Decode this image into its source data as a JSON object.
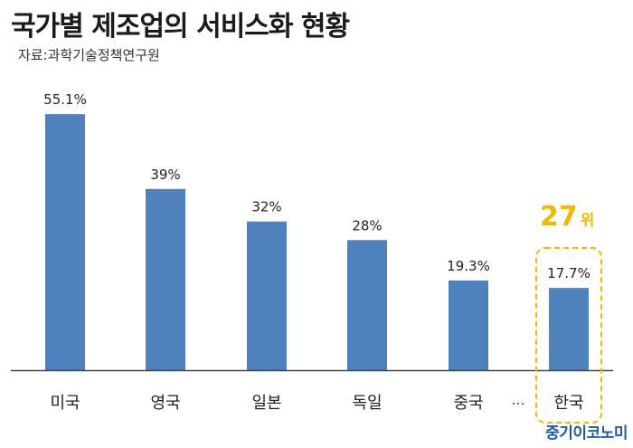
{
  "title": "국가별 제조업의 서비스화 현황",
  "source": "자료:과학기술정책연구원",
  "rank": {
    "number": "27",
    "suffix": "위"
  },
  "ellipsis": "…",
  "brand": "중기이코노미",
  "colors": {
    "bar": "#4f81bd",
    "highlight": "#f2b705",
    "axis": "#444444",
    "brand": "#1f58a8"
  },
  "chart_data": {
    "type": "bar",
    "categories": [
      "미국",
      "영국",
      "일본",
      "독일",
      "중국",
      "한국"
    ],
    "values": [
      55.1,
      39,
      32,
      28,
      19.3,
      17.7
    ],
    "data_labels": [
      "55.1%",
      "39%",
      "32%",
      "28%",
      "19.3%",
      "17.7%"
    ],
    "highlighted_category": "한국",
    "ylim": [
      0,
      60
    ],
    "grid": false,
    "legend": "none"
  }
}
